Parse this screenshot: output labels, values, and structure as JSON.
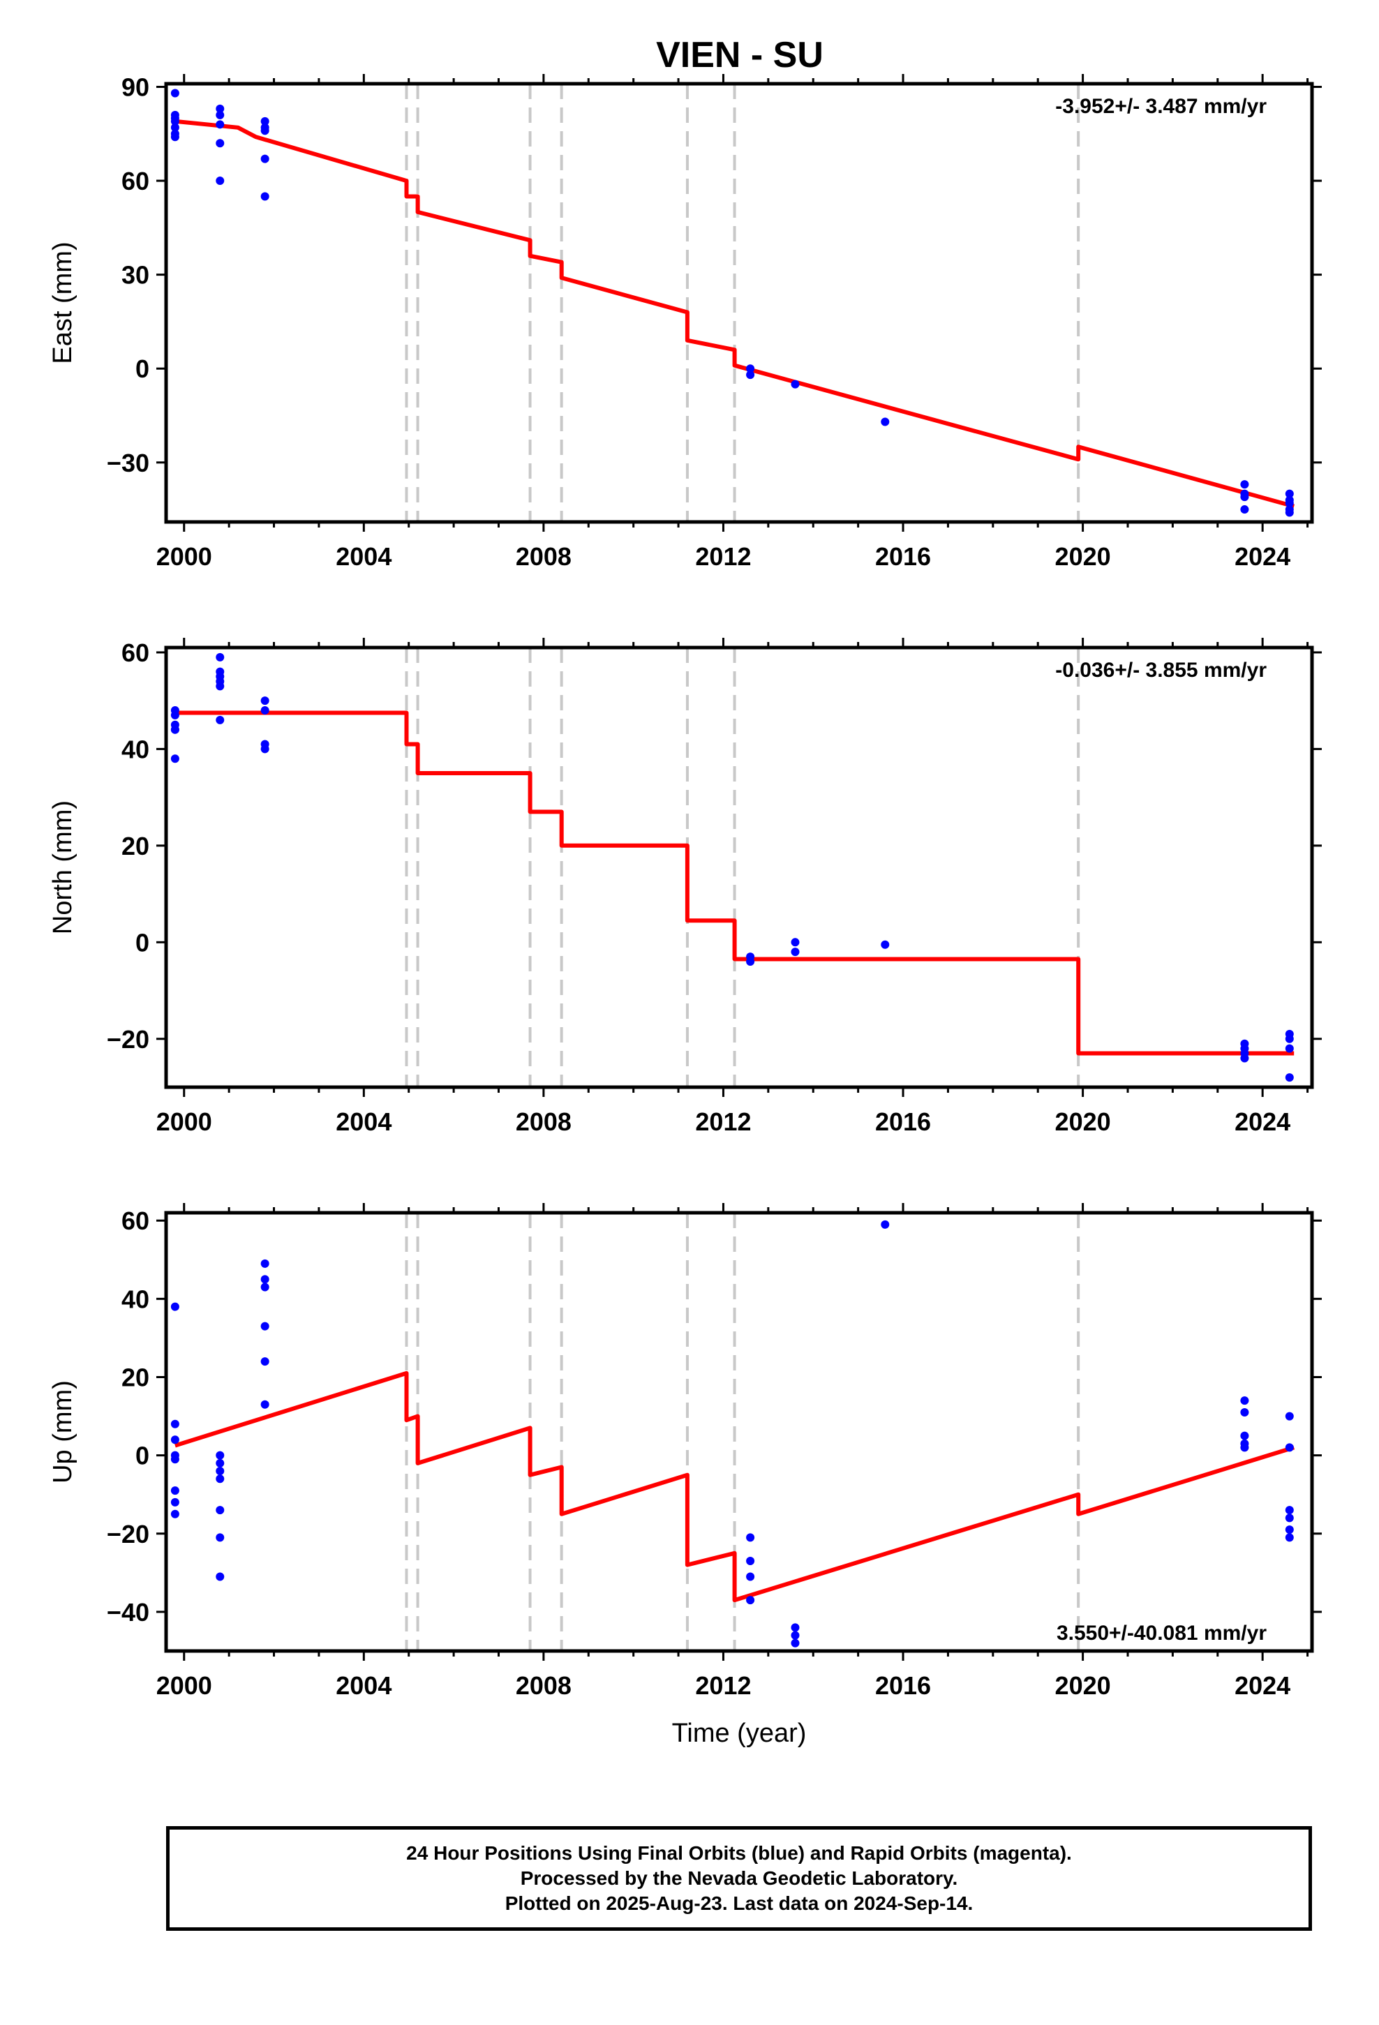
{
  "title": "VIEN - SU",
  "footer": {
    "line1": "24 Hour Positions Using Final Orbits (blue) and Rapid Orbits (magenta).",
    "line2": "Processed by the Nevada Geodetic Laboratory.",
    "line3": "Plotted on 2025-Aug-23. Last data on 2024-Sep-14."
  },
  "colors": {
    "model": "#ff0000",
    "final_orbits": "#0000ff",
    "rapid_orbits": "#ff00ff",
    "event_lines": "#c8c8c8"
  },
  "chart_data": [
    {
      "type": "scatter",
      "component": "east",
      "ylabel": "East (mm)",
      "xlabel": "",
      "xlim": [
        1999.6,
        2025.1
      ],
      "ylim": [
        -49,
        91
      ],
      "xticks": [
        2000,
        2004,
        2008,
        2012,
        2016,
        2020,
        2024
      ],
      "yticks": [
        -30,
        0,
        30,
        60,
        90
      ],
      "rate_text": "-3.952+/- 3.487 mm/yr",
      "rate_position": "top-right",
      "event_years": [
        2004.95,
        2005.2,
        2007.7,
        2008.4,
        2011.2,
        2012.25,
        2019.9
      ],
      "observations": {
        "name": "Final Orbits",
        "x": [
          1999.8,
          1999.8,
          1999.8,
          1999.8,
          1999.8,
          1999.8,
          1999.8,
          2000.8,
          2000.8,
          2000.8,
          2000.8,
          2000.8,
          2001.8,
          2001.8,
          2001.8,
          2001.8,
          2001.8,
          2012.6,
          2012.6,
          2013.6,
          2015.6,
          2023.6,
          2023.6,
          2023.6,
          2023.6,
          2024.6,
          2024.6,
          2024.6,
          2024.6,
          2024.6
        ],
        "y": [
          88,
          81,
          80,
          79,
          77,
          75,
          74,
          83,
          81,
          78,
          72,
          60,
          79,
          77,
          76,
          67,
          55,
          0,
          -2,
          -5,
          -17,
          -37,
          -40,
          -41,
          -45,
          -40,
          -42,
          -43,
          -45,
          -46
        ]
      },
      "model": {
        "name": "Model",
        "x": [
          1999.8,
          2001.2,
          2001.6,
          2004.95,
          2004.95,
          2005.2,
          2005.2,
          2007.7,
          2007.7,
          2008.4,
          2008.4,
          2011.2,
          2011.2,
          2012.25,
          2012.25,
          2019.9,
          2019.9,
          2024.7
        ],
        "y": [
          79,
          77,
          74,
          60,
          55,
          55,
          50,
          41,
          36,
          34,
          29,
          18,
          9,
          6,
          1,
          -29,
          -25,
          -44
        ]
      }
    },
    {
      "type": "scatter",
      "component": "north",
      "ylabel": "North (mm)",
      "xlabel": "",
      "xlim": [
        1999.6,
        2025.1
      ],
      "ylim": [
        -30,
        61
      ],
      "xticks": [
        2000,
        2004,
        2008,
        2012,
        2016,
        2020,
        2024
      ],
      "yticks": [
        -20,
        0,
        20,
        40,
        60
      ],
      "rate_text": "-0.036+/- 3.855 mm/yr",
      "rate_position": "top-right",
      "event_years": [
        2004.95,
        2005.2,
        2007.7,
        2008.4,
        2011.2,
        2012.25,
        2019.9
      ],
      "observations": {
        "name": "Final Orbits",
        "x": [
          1999.8,
          1999.8,
          1999.8,
          1999.8,
          1999.8,
          1999.8,
          2000.8,
          2000.8,
          2000.8,
          2000.8,
          2000.8,
          2000.8,
          2001.8,
          2001.8,
          2001.8,
          2001.8,
          2012.6,
          2012.6,
          2013.6,
          2013.6,
          2015.6,
          2023.6,
          2023.6,
          2023.6,
          2023.6,
          2024.6,
          2024.6,
          2024.6,
          2024.6
        ],
        "y": [
          48,
          47,
          45,
          44,
          44,
          38,
          59,
          56,
          55,
          54,
          53,
          46,
          50,
          48,
          41,
          40,
          -3,
          -4,
          0,
          -2,
          -0.5,
          -21,
          -22,
          -23,
          -24,
          -19,
          -20,
          -22,
          -28
        ]
      },
      "model": {
        "name": "Model",
        "x": [
          1999.8,
          2004.95,
          2004.95,
          2005.2,
          2005.2,
          2007.7,
          2007.7,
          2008.4,
          2008.4,
          2011.2,
          2011.2,
          2012.25,
          2012.25,
          2019.9,
          2019.9,
          2024.7
        ],
        "y": [
          47.5,
          47.5,
          41,
          41,
          35,
          35,
          27,
          27,
          20,
          20,
          4.5,
          4.5,
          -3.5,
          -3.5,
          -23,
          -23
        ]
      }
    },
    {
      "type": "scatter",
      "component": "up",
      "ylabel": "Up (mm)",
      "xlabel": "Time (year)",
      "xlim": [
        1999.6,
        2025.1
      ],
      "ylim": [
        -50,
        62
      ],
      "xticks": [
        2000,
        2004,
        2008,
        2012,
        2016,
        2020,
        2024
      ],
      "yticks": [
        -40,
        -20,
        0,
        20,
        40,
        60
      ],
      "rate_text": "3.550+/-40.081 mm/yr",
      "rate_position": "bottom-right",
      "event_years": [
        2004.95,
        2005.2,
        2007.7,
        2008.4,
        2011.2,
        2012.25,
        2019.9
      ],
      "observations": {
        "name": "Final Orbits",
        "x": [
          1999.8,
          1999.8,
          1999.8,
          1999.8,
          1999.8,
          1999.8,
          1999.8,
          1999.8,
          2000.8,
          2000.8,
          2000.8,
          2000.8,
          2000.8,
          2000.8,
          2000.8,
          2001.8,
          2001.8,
          2001.8,
          2001.8,
          2001.8,
          2001.8,
          2012.6,
          2012.6,
          2012.6,
          2012.6,
          2013.6,
          2013.6,
          2013.6,
          2015.6,
          2023.6,
          2023.6,
          2023.6,
          2023.6,
          2023.6,
          2024.6,
          2024.6,
          2024.6,
          2024.6,
          2024.6,
          2024.6
        ],
        "y": [
          38,
          8,
          4,
          0,
          -1,
          -9,
          -12,
          -15,
          0,
          -4,
          -6,
          -14,
          -21,
          -31,
          -2,
          49,
          45,
          43,
          33,
          24,
          13,
          -21,
          -27,
          -31,
          -37,
          -44,
          -46,
          -48,
          59,
          14,
          11,
          5,
          3,
          2,
          10,
          2,
          -14,
          -16,
          -19,
          -21
        ]
      },
      "model": {
        "name": "Model",
        "x": [
          1999.8,
          2004.95,
          2004.95,
          2005.2,
          2005.2,
          2007.7,
          2007.7,
          2008.4,
          2008.4,
          2011.2,
          2011.2,
          2012.25,
          2012.25,
          2019.9,
          2019.9,
          2024.7
        ],
        "y": [
          2.5,
          21,
          9,
          10,
          -2,
          7,
          -5,
          -3,
          -15,
          -5,
          -28,
          -25,
          -37,
          -10,
          -15,
          2
        ]
      }
    }
  ]
}
